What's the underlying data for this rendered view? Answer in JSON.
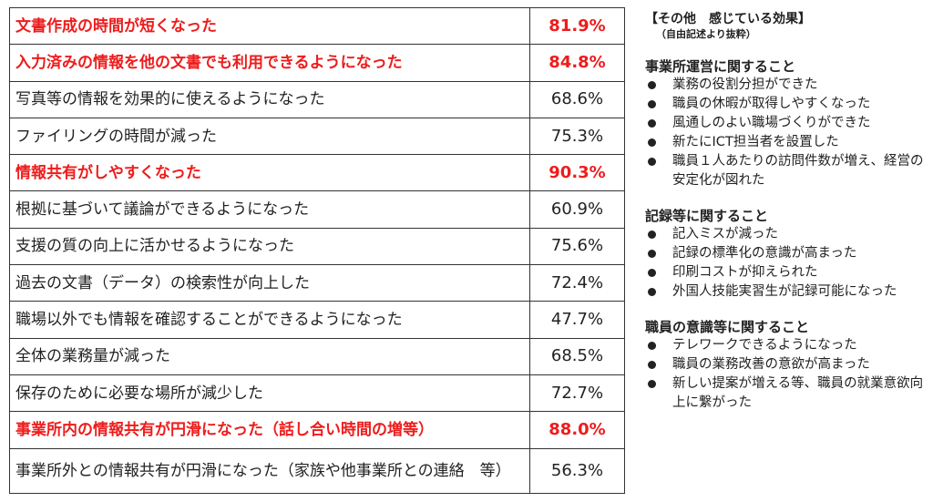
{
  "rows": [
    {
      "label": "文書作成の時間が短くなった",
      "value": "81.9%",
      "highlight": true
    },
    {
      "label": "入力済みの情報を他の文書でも利用できるようになった",
      "value": "84.8%",
      "highlight": true
    },
    {
      "label": "写真等の情報を効果的に使えるようになった",
      "value": "68.6%",
      "highlight": false
    },
    {
      "label": "ファイリングの時間が減った",
      "value": "75.3%",
      "highlight": false
    },
    {
      "label": "情報共有がしやすくなった",
      "value": "90.3%",
      "highlight": true
    },
    {
      "label": "根拠に基づいて議論ができるようになった",
      "value": "60.9%",
      "highlight": false
    },
    {
      "label": "支援の質の向上に活かせるようになった",
      "value": "75.6%",
      "highlight": false
    },
    {
      "label": "過去の文書（データ）の検索性が向上した",
      "value": "72.4%",
      "highlight": false
    },
    {
      "label": "職場以外でも情報を確認することができるようになった",
      "value": "47.7%",
      "highlight": false
    },
    {
      "label": "全体の業務量が減った",
      "value": "68.5%",
      "highlight": false
    },
    {
      "label": "保存のために必要な場所が減少した",
      "value": "72.7%",
      "highlight": false
    },
    {
      "label": "事業所内の情報共有が円滑になった（話し合い時間の増等）",
      "value": "88.0%",
      "highlight": true
    },
    {
      "label": "事業所外との情報共有が円滑になった（家族や他事業所との連絡　等）",
      "value": "56.3%",
      "highlight": false
    }
  ],
  "highlight_color": "#ee1c1c",
  "side": {
    "title": "【その他　感じている効果】",
    "note": "（自由記述より抜粋）",
    "sections": [
      {
        "heading": "事業所運営に関すること",
        "items": [
          "業務の役割分担ができた",
          "職員の休暇が取得しやすくなった",
          "風通しのよい職場づくりができた",
          "新たにICT担当者を設置した",
          "職員１人あたりの訪問件数が増え、経営の安定化が図れた"
        ]
      },
      {
        "heading": "記録等に関すること",
        "items": [
          "記入ミスが減った",
          "記録の標準化の意識が高まった",
          "印刷コストが抑えられた",
          "外国人技能実習生が記録可能になった"
        ]
      },
      {
        "heading": "職員の意識等に関すること",
        "items": [
          "テレワークできるようになった",
          "職員の業務改善の意欲が高まった",
          "新しい提案が増える等、職員の就業意欲向上に繋がった"
        ]
      }
    ]
  }
}
